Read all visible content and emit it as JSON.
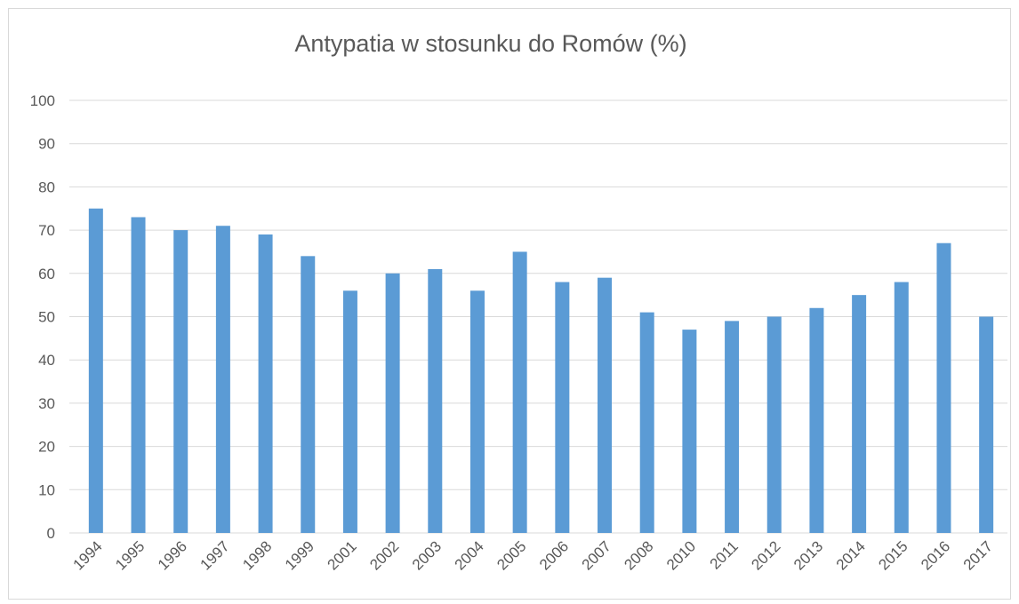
{
  "chart_data": {
    "type": "bar",
    "title": "Antypatia w stosunku do Romów (%)",
    "categories": [
      "1994",
      "1995",
      "1996",
      "1997",
      "1998",
      "1999",
      "2001",
      "2002",
      "2003",
      "2004",
      "2005",
      "2006",
      "2007",
      "2008",
      "2010",
      "2011",
      "2012",
      "2013",
      "2014",
      "2015",
      "2016",
      "2017"
    ],
    "values": [
      75,
      73,
      70,
      71,
      69,
      64,
      56,
      60,
      61,
      56,
      65,
      58,
      59,
      51,
      47,
      49,
      50,
      52,
      55,
      58,
      67,
      50
    ],
    "color": "#5b9bd5",
    "ylim": [
      0,
      100
    ],
    "yticks": [
      0,
      10,
      20,
      30,
      40,
      50,
      60,
      70,
      80,
      90,
      100
    ],
    "grid": true
  }
}
